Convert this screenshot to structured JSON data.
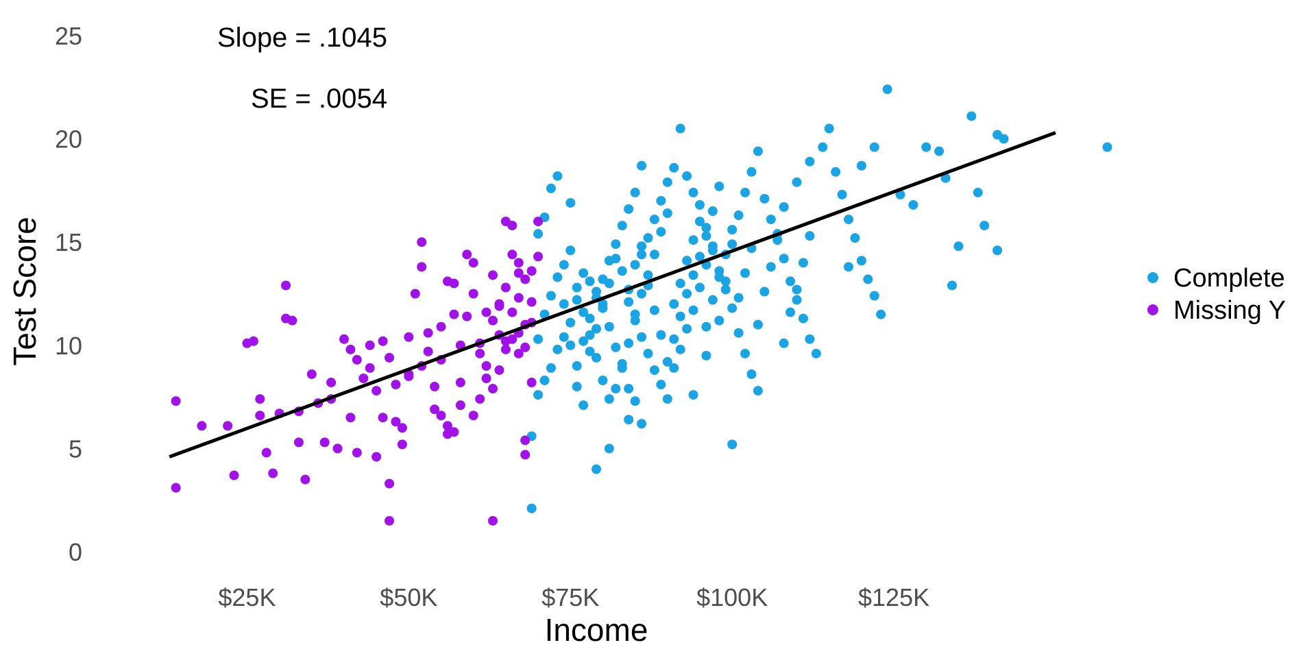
{
  "chart_data": {
    "type": "scatter",
    "title": "",
    "xlabel": "Income",
    "ylabel": "Test Score",
    "xlim": [
      8000,
      150000
    ],
    "ylim": [
      0,
      25
    ],
    "x_ticks": [
      25000,
      50000,
      75000,
      100000,
      125000
    ],
    "x_tick_labels": [
      "$25K",
      "$50K",
      "$75K",
      "$100K",
      "$125K"
    ],
    "y_ticks": [
      0,
      5,
      10,
      15,
      20,
      25
    ],
    "y_tick_labels": [
      "0",
      "5",
      "10",
      "15",
      "20",
      "25"
    ],
    "grid": false,
    "legend": "right",
    "annotations": [
      "Slope = .1045",
      "SE = .0054"
    ],
    "fit_line": {
      "x": [
        13000,
        150000
      ],
      "y": [
        4.6,
        20.3
      ]
    },
    "series": [
      {
        "name": "Complete",
        "color": "#1ba4e4",
        "points": [
          [
            69,
            5.6
          ],
          [
            69,
            2.1
          ],
          [
            70,
            7.6
          ],
          [
            71,
            8.3
          ],
          [
            72,
            8.9
          ],
          [
            73,
            9.8
          ],
          [
            74,
            10.4
          ],
          [
            75,
            11.1
          ],
          [
            76,
            12.2
          ],
          [
            77,
            13.5
          ],
          [
            70,
            15.4
          ],
          [
            71,
            16.2
          ],
          [
            72,
            17.6
          ],
          [
            73,
            18.2
          ],
          [
            75,
            16.9
          ],
          [
            78,
            13.1
          ],
          [
            79,
            12.6
          ],
          [
            80,
            11.8
          ],
          [
            81,
            10.9
          ],
          [
            82,
            9.9
          ],
          [
            83,
            8.9
          ],
          [
            84,
            7.9
          ],
          [
            85,
            7.3
          ],
          [
            86,
            6.2
          ],
          [
            79,
            4.0
          ],
          [
            81,
            5.0
          ],
          [
            84,
            6.4
          ],
          [
            86,
            14.4
          ],
          [
            87,
            15.2
          ],
          [
            88,
            16.1
          ],
          [
            89,
            17.0
          ],
          [
            90,
            17.9
          ],
          [
            91,
            18.6
          ],
          [
            92,
            20.5
          ],
          [
            93,
            18.2
          ],
          [
            94,
            17.4
          ],
          [
            95,
            16.8
          ],
          [
            96,
            15.7
          ],
          [
            97,
            14.6
          ],
          [
            98,
            13.6
          ],
          [
            99,
            12.7
          ],
          [
            100,
            11.8
          ],
          [
            101,
            10.6
          ],
          [
            102,
            9.6
          ],
          [
            103,
            8.6
          ],
          [
            104,
            7.8
          ],
          [
            100,
            5.2
          ],
          [
            94,
            7.6
          ],
          [
            96,
            9.5
          ],
          [
            98,
            11.2
          ],
          [
            99,
            13.1
          ],
          [
            100,
            14.9
          ],
          [
            101,
            16.3
          ],
          [
            102,
            17.4
          ],
          [
            103,
            18.4
          ],
          [
            104,
            19.4
          ],
          [
            105,
            17.1
          ],
          [
            106,
            16.1
          ],
          [
            107,
            15.1
          ],
          [
            108,
            14.2
          ],
          [
            109,
            13.1
          ],
          [
            110,
            12.2
          ],
          [
            111,
            11.3
          ],
          [
            112,
            10.3
          ],
          [
            113,
            9.6
          ],
          [
            108,
            16.7
          ],
          [
            110,
            17.9
          ],
          [
            112,
            18.9
          ],
          [
            114,
            19.6
          ],
          [
            115,
            20.5
          ],
          [
            116,
            18.4
          ],
          [
            117,
            17.3
          ],
          [
            118,
            16.1
          ],
          [
            119,
            15.2
          ],
          [
            120,
            14.1
          ],
          [
            121,
            13.2
          ],
          [
            122,
            12.4
          ],
          [
            123,
            11.5
          ],
          [
            118,
            13.8
          ],
          [
            120,
            18.7
          ],
          [
            122,
            19.6
          ],
          [
            124,
            22.4
          ],
          [
            126,
            17.3
          ],
          [
            128,
            16.8
          ],
          [
            130,
            19.6
          ],
          [
            132,
            19.4
          ],
          [
            133,
            18.1
          ],
          [
            134,
            12.9
          ],
          [
            135,
            14.8
          ],
          [
            137,
            21.1
          ],
          [
            138,
            17.4
          ],
          [
            139,
            15.8
          ],
          [
            141,
            20.2
          ],
          [
            142,
            20.0
          ],
          [
            141,
            14.6
          ],
          [
            158,
            19.6
          ],
          [
            76,
            9.0
          ],
          [
            77,
            10.2
          ],
          [
            78,
            11.3
          ],
          [
            79,
            12.3
          ],
          [
            80,
            13.2
          ],
          [
            81,
            14.1
          ],
          [
            82,
            14.9
          ],
          [
            83,
            15.8
          ],
          [
            84,
            16.6
          ],
          [
            85,
            17.4
          ],
          [
            86,
            18.7
          ],
          [
            84,
            12.1
          ],
          [
            85,
            11.2
          ],
          [
            86,
            10.4
          ],
          [
            87,
            9.6
          ],
          [
            88,
            8.8
          ],
          [
            89,
            8.1
          ],
          [
            90,
            7.4
          ],
          [
            91,
            8.9
          ],
          [
            92,
            9.8
          ],
          [
            93,
            10.8
          ],
          [
            94,
            11.7
          ],
          [
            95,
            12.8
          ],
          [
            96,
            13.9
          ],
          [
            97,
            14.8
          ],
          [
            74,
            13.9
          ],
          [
            75,
            14.6
          ],
          [
            76,
            12.8
          ],
          [
            77,
            11.6
          ],
          [
            78,
            10.5
          ],
          [
            79,
            9.4
          ],
          [
            80,
            8.3
          ],
          [
            81,
            7.4
          ],
          [
            82,
            7.9
          ],
          [
            83,
            9.1
          ],
          [
            84,
            10.1
          ],
          [
            85,
            11.5
          ],
          [
            86,
            12.5
          ],
          [
            87,
            13.4
          ],
          [
            88,
            14.4
          ],
          [
            89,
            15.5
          ],
          [
            90,
            16.4
          ],
          [
            91,
            12.0
          ],
          [
            92,
            13.0
          ],
          [
            93,
            14.1
          ],
          [
            94,
            15.1
          ],
          [
            95,
            16.0
          ],
          [
            96,
            10.9
          ],
          [
            97,
            12.2
          ],
          [
            98,
            13.3
          ],
          [
            99,
            14.4
          ],
          [
            100,
            15.6
          ],
          [
            101,
            12.3
          ],
          [
            102,
            13.5
          ],
          [
            103,
            14.7
          ],
          [
            104,
            11.0
          ],
          [
            105,
            12.6
          ],
          [
            106,
            13.8
          ],
          [
            107,
            15.4
          ],
          [
            108,
            10.1
          ],
          [
            109,
            11.6
          ],
          [
            110,
            12.7
          ],
          [
            111,
            14.0
          ],
          [
            112,
            15.3
          ],
          [
            70,
            10.3
          ],
          [
            71,
            11.5
          ],
          [
            72,
            12.4
          ],
          [
            73,
            13.3
          ],
          [
            74,
            12.0
          ],
          [
            75,
            10.0
          ],
          [
            76,
            8.0
          ],
          [
            77,
            7.1
          ],
          [
            78,
            9.7
          ],
          [
            79,
            10.8
          ],
          [
            80,
            12.0
          ],
          [
            81,
            13.0
          ],
          [
            82,
            14.2
          ],
          [
            83,
            13.6
          ],
          [
            84,
            12.7
          ],
          [
            85,
            13.9
          ],
          [
            86,
            14.8
          ],
          [
            87,
            12.9
          ],
          [
            88,
            11.7
          ],
          [
            89,
            10.5
          ],
          [
            90,
            9.2
          ],
          [
            91,
            10.3
          ],
          [
            92,
            11.4
          ],
          [
            93,
            12.5
          ],
          [
            94,
            13.4
          ],
          [
            95,
            14.3
          ],
          [
            96,
            15.3
          ],
          [
            97,
            16.5
          ],
          [
            98,
            17.7
          ]
        ]
      },
      {
        "name": "Missing Y",
        "color": "#a012e8",
        "points": [
          [
            14,
            7.3
          ],
          [
            14,
            3.1
          ],
          [
            18,
            6.1
          ],
          [
            22,
            6.1
          ],
          [
            23,
            3.7
          ],
          [
            25,
            10.1
          ],
          [
            26,
            10.2
          ],
          [
            27,
            7.4
          ],
          [
            27,
            6.6
          ],
          [
            28,
            4.8
          ],
          [
            29,
            3.8
          ],
          [
            30,
            6.7
          ],
          [
            31,
            12.9
          ],
          [
            31,
            11.3
          ],
          [
            32,
            11.2
          ],
          [
            33,
            6.8
          ],
          [
            33,
            5.3
          ],
          [
            34,
            3.5
          ],
          [
            35,
            8.6
          ],
          [
            36,
            7.2
          ],
          [
            37,
            5.3
          ],
          [
            38,
            8.2
          ],
          [
            38,
            7.4
          ],
          [
            39,
            5.0
          ],
          [
            40,
            10.3
          ],
          [
            41,
            9.8
          ],
          [
            41,
            6.5
          ],
          [
            42,
            4.8
          ],
          [
            43,
            8.4
          ],
          [
            44,
            10.0
          ],
          [
            45,
            4.6
          ],
          [
            45,
            7.8
          ],
          [
            46,
            10.2
          ],
          [
            47,
            9.4
          ],
          [
            47,
            3.3
          ],
          [
            47,
            1.5
          ],
          [
            48,
            8.1
          ],
          [
            48,
            6.3
          ],
          [
            49,
            6.0
          ],
          [
            50,
            10.4
          ],
          [
            50,
            8.5
          ],
          [
            51,
            12.5
          ],
          [
            52,
            13.8
          ],
          [
            52,
            15.0
          ],
          [
            53,
            9.7
          ],
          [
            54,
            8.0
          ],
          [
            54,
            6.9
          ],
          [
            55,
            9.3
          ],
          [
            55,
            10.9
          ],
          [
            56,
            13.1
          ],
          [
            56,
            6.1
          ],
          [
            57,
            11.5
          ],
          [
            57,
            13.0
          ],
          [
            58,
            10.0
          ],
          [
            58,
            8.2
          ],
          [
            59,
            11.4
          ],
          [
            59,
            14.4
          ],
          [
            60,
            14.0
          ],
          [
            60,
            12.5
          ],
          [
            61,
            10.1
          ],
          [
            61,
            9.6
          ],
          [
            62,
            11.6
          ],
          [
            62,
            8.4
          ],
          [
            63,
            1.5
          ],
          [
            63,
            13.4
          ],
          [
            64,
            11.9
          ],
          [
            64,
            10.5
          ],
          [
            65,
            9.8
          ],
          [
            65,
            12.8
          ],
          [
            65,
            16.0
          ],
          [
            66,
            15.8
          ],
          [
            66,
            14.4
          ],
          [
            67,
            13.5
          ],
          [
            67,
            12.3
          ],
          [
            67,
            10.6
          ],
          [
            68,
            9.9
          ],
          [
            68,
            5.4
          ],
          [
            68,
            4.7
          ],
          [
            69,
            8.2
          ],
          [
            69,
            11.1
          ],
          [
            69,
            13.6
          ],
          [
            70,
            14.3
          ],
          [
            70,
            16.0
          ],
          [
            58,
            7.1
          ],
          [
            57,
            5.8
          ],
          [
            56,
            5.7
          ],
          [
            55,
            6.6
          ],
          [
            53,
            10.6
          ],
          [
            52,
            9.0
          ],
          [
            50,
            8.6
          ],
          [
            49,
            5.2
          ],
          [
            46,
            6.5
          ],
          [
            44,
            8.9
          ],
          [
            42,
            9.3
          ],
          [
            60,
            6.6
          ],
          [
            61,
            7.4
          ],
          [
            62,
            9.0
          ],
          [
            63,
            11.2
          ],
          [
            64,
            12.0
          ],
          [
            66,
            10.3
          ],
          [
            67,
            9.6
          ],
          [
            68,
            11.0
          ],
          [
            69,
            12.1
          ],
          [
            68,
            13.2
          ],
          [
            67,
            14.0
          ],
          [
            66,
            11.6
          ],
          [
            65,
            10.2
          ],
          [
            64,
            8.8
          ],
          [
            63,
            7.9
          ]
        ]
      }
    ]
  }
}
